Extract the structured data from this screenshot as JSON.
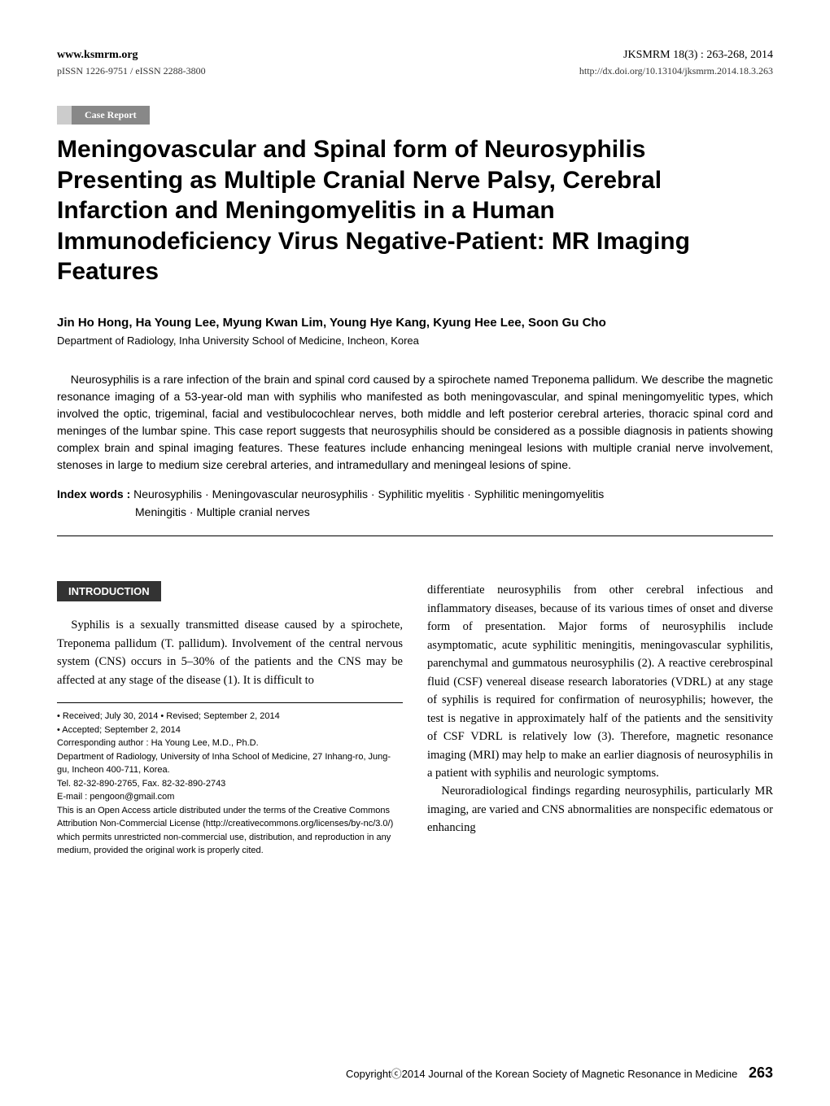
{
  "header": {
    "website": "www.ksmrm.org",
    "journal_ref": "JKSMRM 18(3) : 263-268, 2014",
    "issn": "pISSN 1226-9751 / eISSN 2288-3800",
    "doi": "http://dx.doi.org/10.13104/jksmrm.2014.18.3.263"
  },
  "badge": "Case Report",
  "title": "Meningovascular and Spinal form of Neurosyphilis Presenting as Multiple Cranial Nerve Palsy, Cerebral Infarction and Meningomyelitis in a Human Immunodeficiency Virus Negative-Patient: MR Imaging Features",
  "authors": "Jin Ho Hong, Ha Young Lee, Myung Kwan Lim, Young Hye Kang, Kyung Hee Lee, Soon Gu Cho",
  "affiliation": "Department of Radiology, Inha University School of Medicine, Incheon, Korea",
  "abstract": "Neurosyphilis is a rare infection of the brain and spinal cord caused by a spirochete named Treponema pallidum. We describe the magnetic resonance imaging of a 53-year-old man with syphilis who manifested as both meningovascular, and spinal meningomyelitic types, which involved the optic, trigeminal, facial and vestibulocochlear nerves, both middle and left posterior cerebral arteries, thoracic spinal cord and meninges of the lumbar spine. This case report suggests that neurosyphilis should be considered as a possible diagnosis in patients showing complex brain and spinal imaging features. These features include enhancing meningeal lesions with multiple cranial nerve involvement, stenoses in large to medium size cerebral arteries, and intramedullary and meningeal lesions of spine.",
  "index_words": {
    "label": "Index words :",
    "line1": "Neurosyphilis · Meningovascular neurosyphilis · Syphilitic myelitis · Syphilitic meningomyelitis",
    "line2": "Meningitis · Multiple cranial nerves"
  },
  "section_header": "INTRODUCTION",
  "column_left": {
    "p1": "Syphilis is a sexually transmitted disease caused by a spirochete, Treponema pallidum (T. pallidum). Involvement of the central nervous system (CNS) occurs in 5–30% of the patients and the CNS may be affected at any stage of the disease (1). It is difficult to"
  },
  "footnotes": {
    "received": "• Received; July 30, 2014 • Revised; September 2, 2014",
    "accepted": "• Accepted; September 2, 2014",
    "corresponding": "Corresponding author : Ha Young Lee, M.D., Ph.D.",
    "department": "Department of Radiology, University of Inha School of Medicine, 27 Inhang-ro, Jung-gu, Incheon 400-711, Korea.",
    "phone": "Tel. 82-32-890-2765, Fax. 82-32-890-2743",
    "email": "E-mail : pengoon@gmail.com",
    "license": "This is an Open Access article distributed under the terms of the Creative Commons Attribution Non-Commercial License (http://creativecommons.org/licenses/by-nc/3.0/) which permits unrestricted non-commercial use, distribution, and reproduction in any medium, provided the original work is properly cited."
  },
  "column_right": {
    "p1": "differentiate neurosyphilis from other cerebral infectious and inflammatory diseases, because of its various times of onset and diverse form of presentation. Major forms of neurosyphilis include asymptomatic, acute syphilitic meningitis, meningovascular syphilitis, parenchymal and gummatous neurosyphilis (2). A reactive cerebrospinal fluid (CSF) venereal disease research laboratories (VDRL) at any stage of syphilis is required for confirmation of neurosyphilis; however, the test is negative in approximately half of the patients and the sensitivity of CSF VDRL is relatively low (3). Therefore, magnetic resonance imaging (MRI) may help to make an earlier diagnosis of neurosyphilis in a patient with syphilis and neurologic symptoms.",
    "p2": "Neuroradiological findings regarding neurosyphilis, particularly MR imaging, are varied and CNS abnormalities are nonspecific edematous or enhancing"
  },
  "footer": {
    "copyright": "Copyrightⓒ2014 Journal of the Korean Society of Magnetic Resonance in Medicine",
    "page": "263"
  },
  "colors": {
    "badge_bg": "#888888",
    "badge_border": "#cccccc",
    "section_bg": "#333333",
    "text": "#000000"
  }
}
